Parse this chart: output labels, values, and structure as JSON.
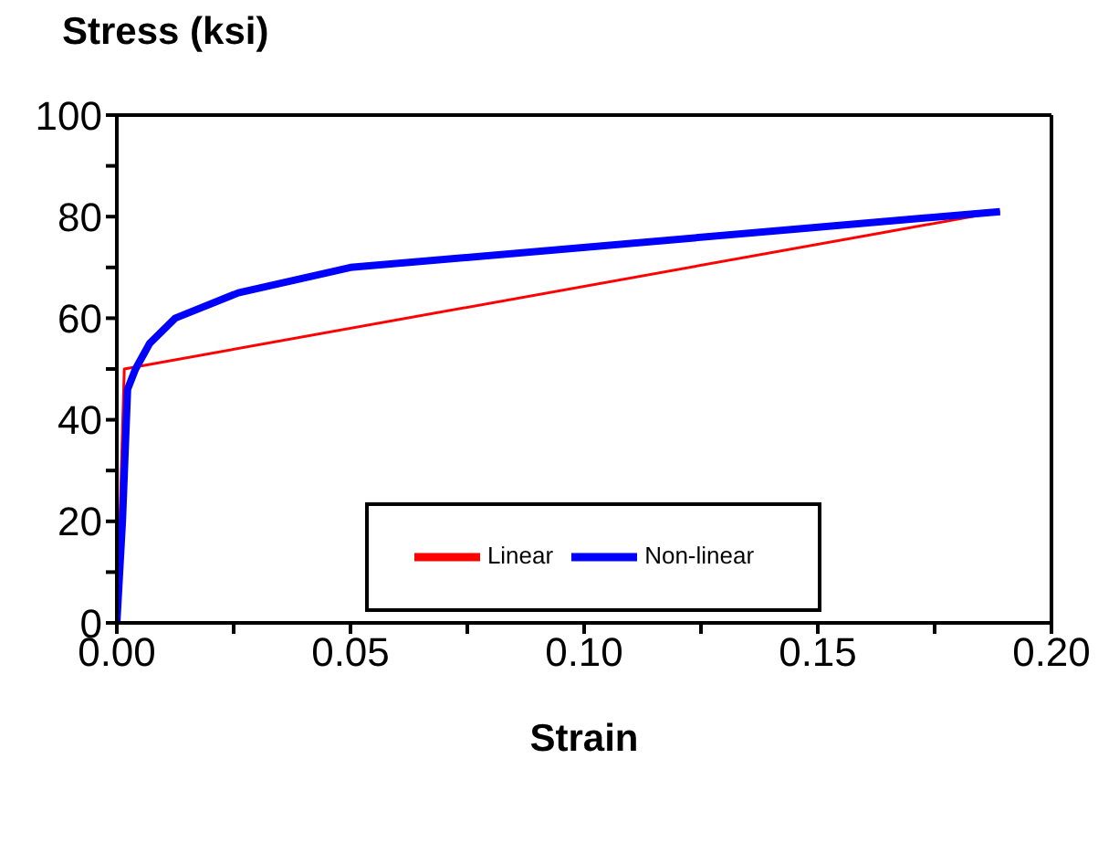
{
  "chart_data": {
    "type": "line",
    "xlabel": "Strain",
    "ylabel": "Stress (ksi)",
    "xlim": [
      0,
      0.2
    ],
    "xticks": [
      {
        "value": 0,
        "label": "0.00"
      },
      {
        "value": 0.025,
        "label": null
      },
      0.05,
      {
        "value": 0.075,
        "label": null
      },
      {
        "value": 0.1,
        "label": "0.10"
      },
      {
        "value": 0.125,
        "label": null
      },
      0.15,
      {
        "value": 0.175,
        "label": null
      },
      {
        "value": 0.2,
        "label": "0.20"
      }
    ],
    "ylim": [
      0,
      100
    ],
    "yticks": [
      0,
      {
        "value": 10,
        "label": null
      },
      20,
      {
        "value": 30,
        "label": null
      },
      40,
      {
        "value": 50,
        "label": null
      },
      60,
      {
        "value": 70,
        "label": null
      },
      80,
      {
        "value": 90,
        "label": null
      },
      100
    ],
    "series": [
      {
        "name": "Linear",
        "color": "#ff0000",
        "x": [
          0,
          0.0016,
          0.189
        ],
        "values": [
          0,
          50,
          81
        ]
      },
      {
        "name": "Non-linear",
        "color": "#0000ff",
        "x": [
          0,
          0.0012,
          0.0023,
          0.004,
          0.007,
          0.0125,
          0.026,
          0.05,
          0.189
        ],
        "values": [
          0,
          20,
          46,
          50,
          55,
          60,
          65,
          70,
          81
        ]
      }
    ],
    "legend": "bottom",
    "marker": "none",
    "line_style": "solid"
  }
}
